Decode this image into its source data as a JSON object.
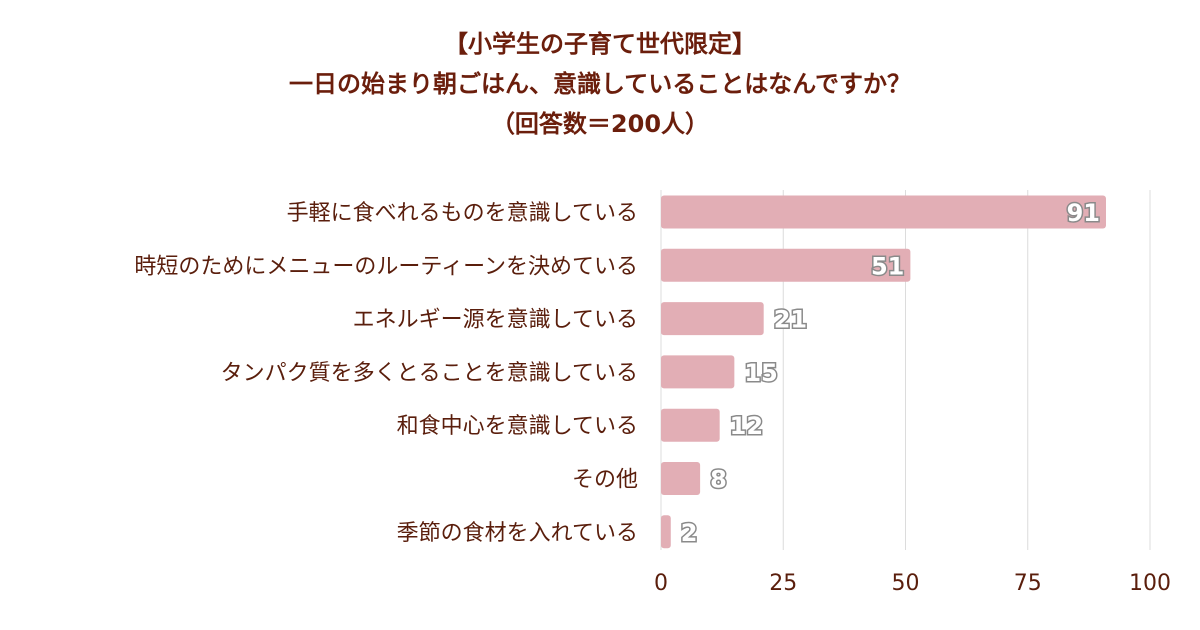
{
  "chart_data": {
    "type": "bar",
    "orientation": "horizontal",
    "title": [
      "【小学生の子育て世代限定】",
      "一日の始まり朝ごはん、意識していることはなんですか？",
      "（回答数＝200人）"
    ],
    "categories": [
      "手軽に食べれるものを意識している",
      "時短のためにメニューのルーティーンを決めている",
      "エネルギー源を意識している",
      "タンパク質を多くとることを意識している",
      "和食中心を意識している",
      "その他",
      "季節の食材を入れている"
    ],
    "values": [
      91,
      51,
      21,
      15,
      12,
      8,
      2
    ],
    "xlim": [
      0,
      100
    ],
    "xticks": [
      0,
      25,
      50,
      75,
      100
    ],
    "grid": true,
    "legend": "none",
    "colors": {
      "bar": "#e2aeb5",
      "text": "#5a1e0c",
      "title": "#6b1e0c",
      "grid": "#dcdcdc"
    }
  }
}
